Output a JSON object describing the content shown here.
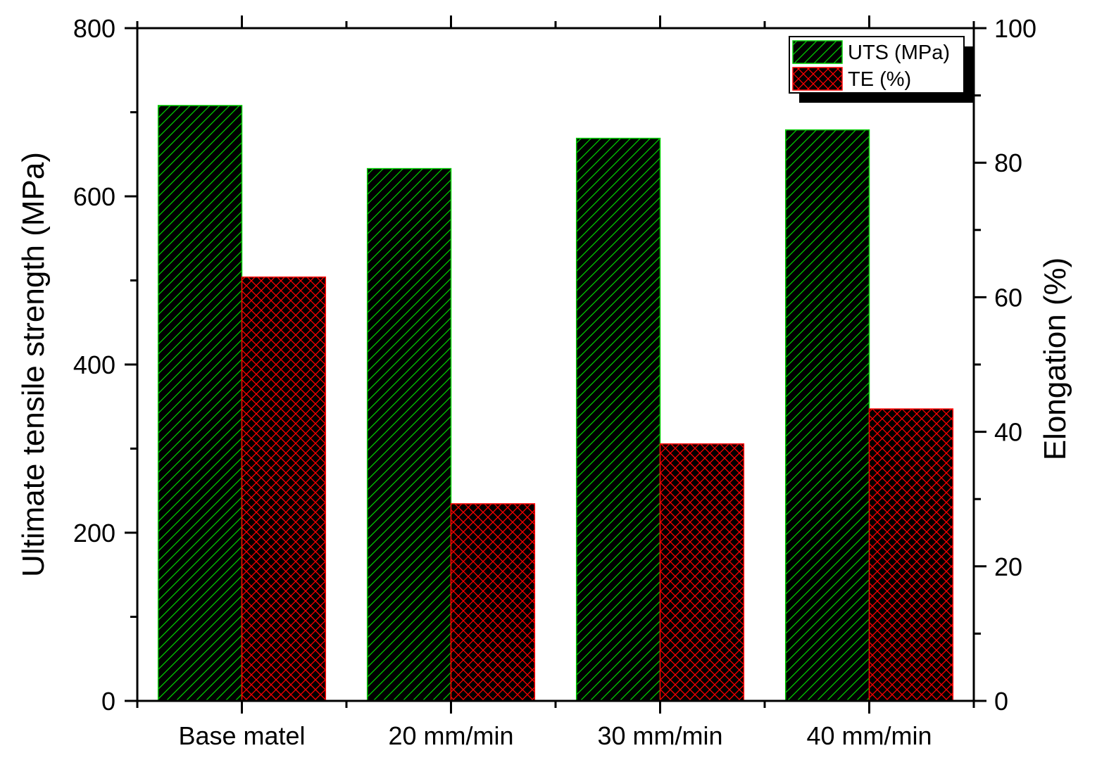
{
  "chart_data": {
    "type": "bar",
    "categories": [
      "Base matel",
      "20 mm/min",
      "30 mm/min",
      "40 mm/min"
    ],
    "series": [
      {
        "name": "UTS (MPa)",
        "axis": "left",
        "values": [
          708,
          633,
          669,
          679
        ],
        "color": "#00cc00",
        "background": "#000000",
        "pattern": "diagonal-hatch"
      },
      {
        "name": "TE (%)",
        "axis": "right",
        "values": [
          63,
          29.3,
          38.2,
          43.4
        ],
        "color": "#ff0000",
        "background": "#000000",
        "pattern": "cross-hatch"
      }
    ],
    "title": "",
    "xlabel": "",
    "ylabel": "Ultimate tensile strength (MPa)",
    "ylabel_right": "Elongation (%)",
    "ylim": [
      0,
      800
    ],
    "ylim_right": [
      0,
      100
    ],
    "yticks": [
      0,
      200,
      400,
      600,
      800
    ],
    "yticks_right": [
      0,
      20,
      40,
      60,
      80,
      100
    ],
    "grid": false,
    "legend_position": "top-right"
  }
}
